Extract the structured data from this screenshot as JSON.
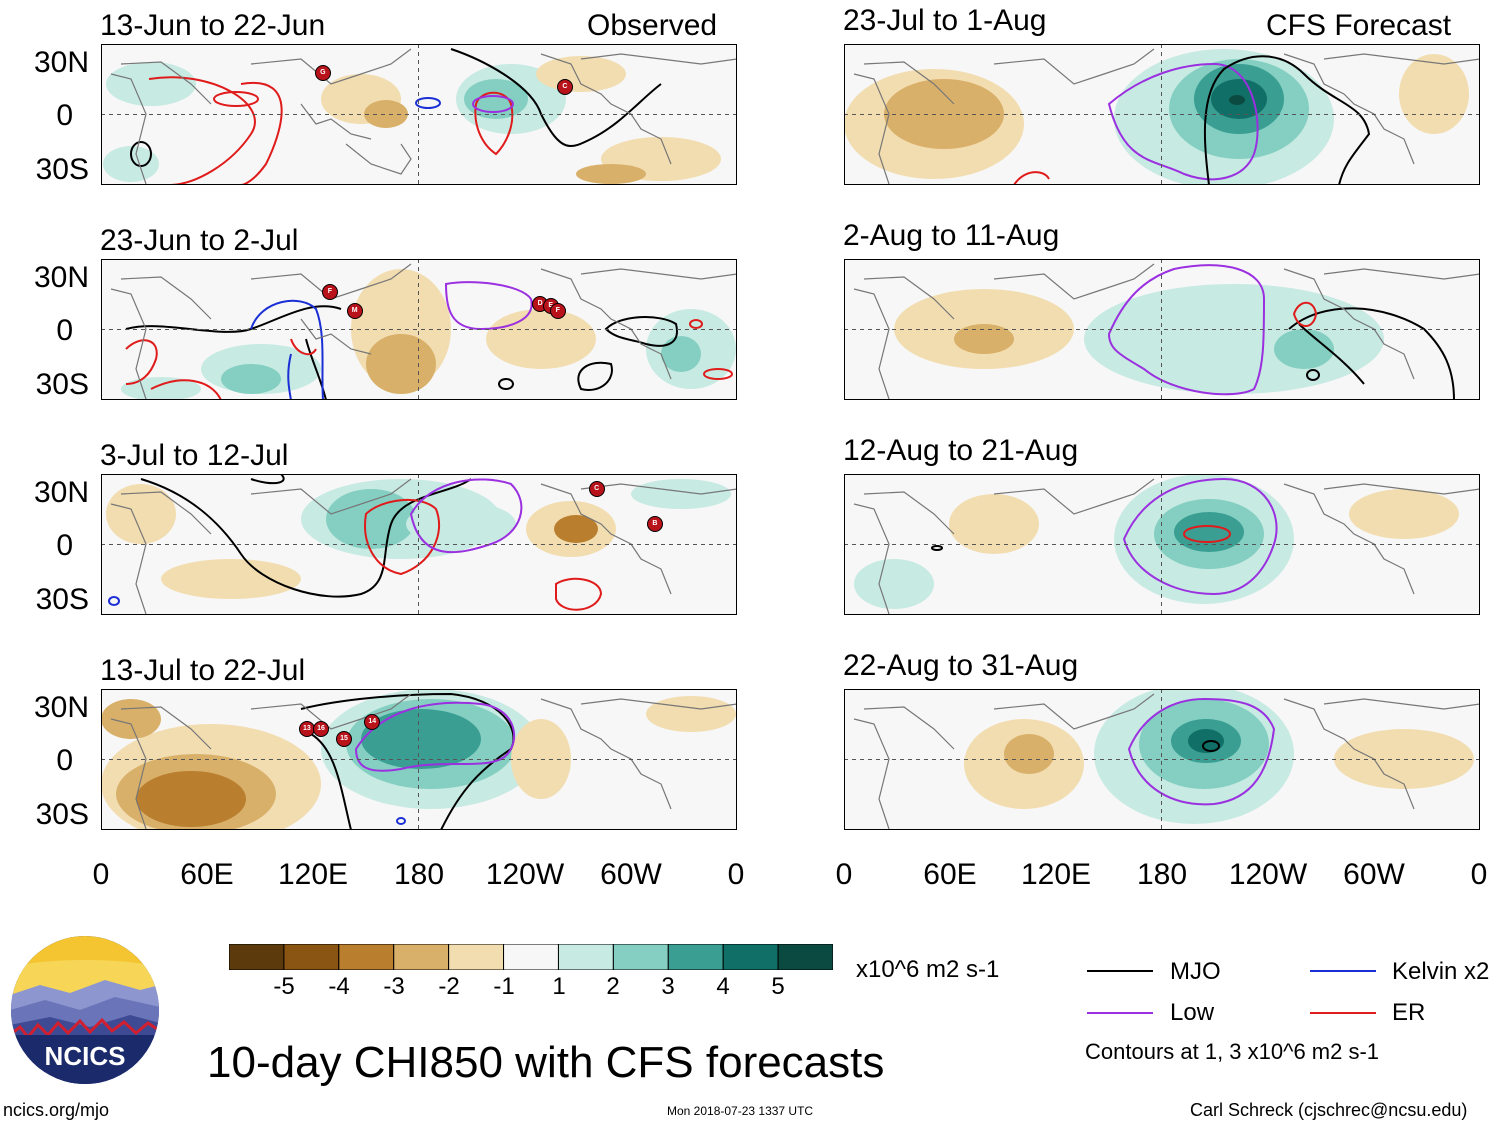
{
  "column_labels": {
    "left": "Observed",
    "right": "CFS Forecast"
  },
  "panels": [
    {
      "title": "13-Jun to 22-Jun"
    },
    {
      "title": "23-Jun to 2-Jul"
    },
    {
      "title": "3-Jul to 12-Jul"
    },
    {
      "title": "13-Jul to 22-Jul"
    },
    {
      "title": "23-Jul to 1-Aug"
    },
    {
      "title": "2-Aug to 11-Aug"
    },
    {
      "title": "12-Aug to 21-Aug"
    },
    {
      "title": "22-Aug to 31-Aug"
    }
  ],
  "lat_labels": [
    "30N",
    "0",
    "30S"
  ],
  "lon_labels": [
    "0",
    "60E",
    "120E",
    "180",
    "120W",
    "60W",
    "0"
  ],
  "colorbar": {
    "labels": [
      "-5",
      "-4",
      "-3",
      "-2",
      "-1",
      "1",
      "2",
      "3",
      "4",
      "5"
    ],
    "units": "x10^6 m2 s-1",
    "colors": [
      "#5c3a0b",
      "#8a5412",
      "#b97e2e",
      "#d9b06a",
      "#f2ddb0",
      "#f7f7f7",
      "#c7eae2",
      "#84cfc2",
      "#3a9e93",
      "#106f66",
      "#0b4a40"
    ]
  },
  "legend": {
    "items": [
      {
        "label": "MJO",
        "color": "#000000"
      },
      {
        "label": "Kelvin x2",
        "color": "#1a2fd6"
      },
      {
        "label": "Low",
        "color": "#9b30e0"
      },
      {
        "label": "ER",
        "color": "#e01b1b"
      }
    ],
    "note": "Contours at 1, 3 x10^6 m2 s-1"
  },
  "main_title": "10-day CHI850 with CFS forecasts",
  "logo_text": "NCICS",
  "footer": {
    "url": "ncics.org/mjo",
    "timestamp": "Mon 2018-07-23 1337 UTC",
    "author": "Carl Schreck (cjschrec@ncsu.edu)"
  },
  "storm_markers": [
    {
      "label": "G",
      "panel": 0,
      "lon": 125,
      "lat": 24
    },
    {
      "label": "C",
      "panel": 0,
      "lon": 262,
      "lat": 16
    },
    {
      "label": "F",
      "panel": 1,
      "lon": 129,
      "lat": 22
    },
    {
      "label": "M",
      "panel": 1,
      "lon": 143,
      "lat": 11
    },
    {
      "label": "D",
      "panel": 1,
      "lon": 248,
      "lat": 15
    },
    {
      "label": "E",
      "panel": 1,
      "lon": 254,
      "lat": 14
    },
    {
      "label": "F",
      "panel": 1,
      "lon": 258,
      "lat": 11
    },
    {
      "label": "C",
      "panel": 2,
      "lon": 280,
      "lat": 32
    },
    {
      "label": "B",
      "panel": 2,
      "lon": 313,
      "lat": 12
    },
    {
      "label": "13",
      "panel": 3,
      "lon": 116,
      "lat": 18
    },
    {
      "label": "16",
      "panel": 3,
      "lon": 124,
      "lat": 18
    },
    {
      "label": "15",
      "panel": 3,
      "lon": 137,
      "lat": 12
    },
    {
      "label": "14",
      "panel": 3,
      "lon": 153,
      "lat": 22
    }
  ]
}
